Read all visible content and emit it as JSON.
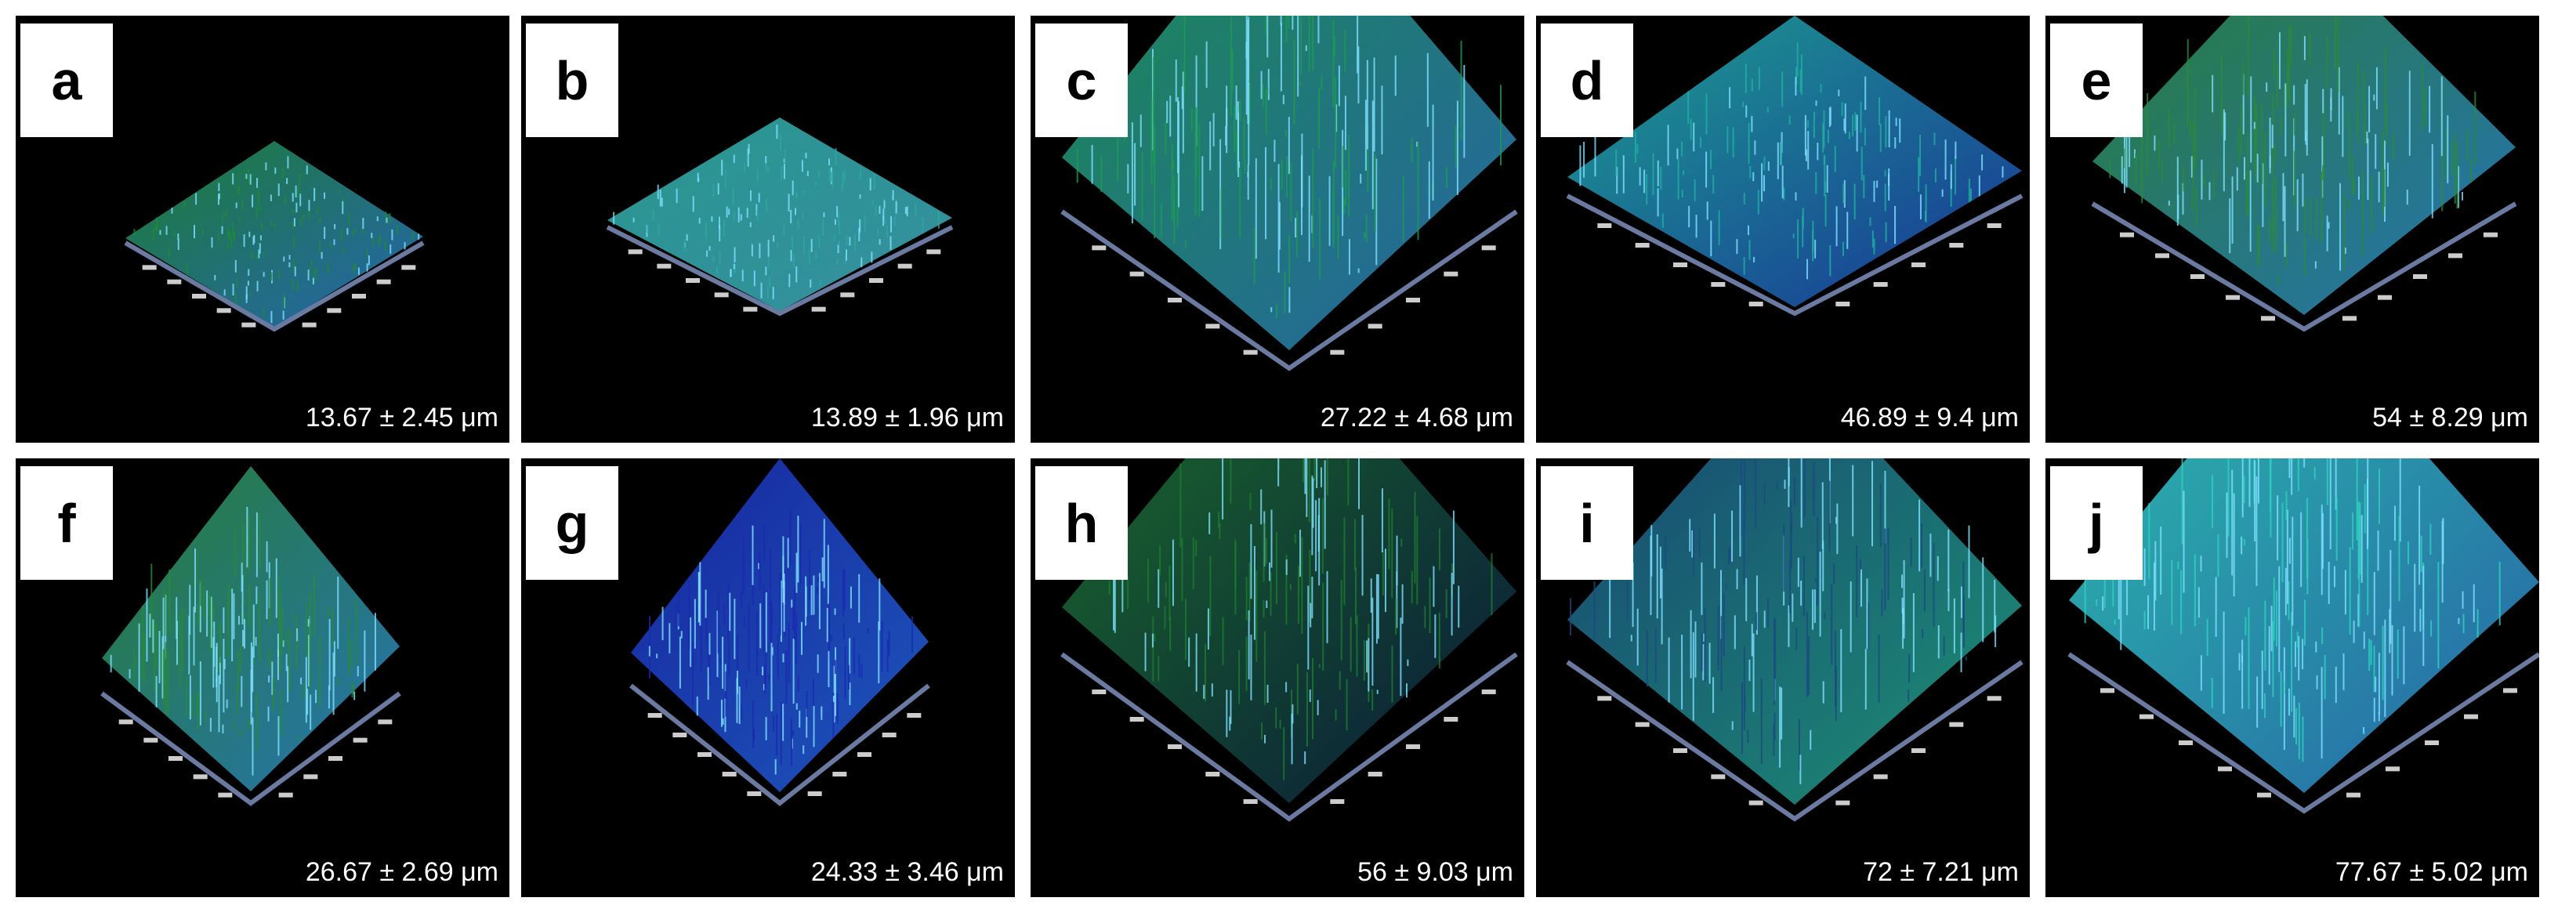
{
  "panels": [
    {
      "label": "a",
      "caption": "13.67 ± 2.45 μm"
    },
    {
      "label": "b",
      "caption": "13.89 ± 1.96 μm"
    },
    {
      "label": "c",
      "caption": "27.22 ± 4.68 μm"
    },
    {
      "label": "d",
      "caption": "46.89 ± 9.4 μm"
    },
    {
      "label": "e",
      "caption": "54 ± 8.29 μm"
    },
    {
      "label": "f",
      "caption": "26.67 ± 2.69 μm"
    },
    {
      "label": "g",
      "caption": "24.33 ± 3.46 μm"
    },
    {
      "label": "h",
      "caption": "56 ± 9.03 μm"
    },
    {
      "label": "i",
      "caption": "72 ± 7.21 μm"
    },
    {
      "label": "j",
      "caption": "77.67 ± 5.02 μm"
    }
  ]
}
